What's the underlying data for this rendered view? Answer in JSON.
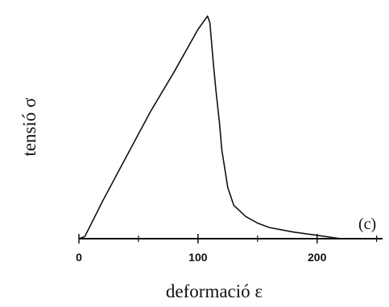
{
  "chart_data": {
    "type": "line",
    "xlabel": "deformació ε",
    "ylabel": "tensió σ",
    "annotation": "(c)",
    "xlim": [
      0,
      255
    ],
    "ylim": [
      0,
      1
    ],
    "x_ticks": [
      0,
      100,
      200
    ],
    "x_tick_labels": [
      "0",
      "100",
      "200"
    ],
    "y_ticks": [],
    "series": [
      {
        "x": [
          0,
          5,
          20,
          40,
          60,
          80,
          100,
          108,
          110,
          113,
          115,
          118,
          120,
          125,
          130,
          140,
          150,
          160,
          180,
          200,
          220,
          225
        ],
        "y": [
          0,
          0.01,
          0.17,
          0.37,
          0.57,
          0.75,
          0.94,
          1.0,
          0.97,
          0.78,
          0.67,
          0.52,
          0.4,
          0.23,
          0.15,
          0.1,
          0.07,
          0.05,
          0.03,
          0.015,
          0.0,
          0.0
        ]
      }
    ]
  }
}
